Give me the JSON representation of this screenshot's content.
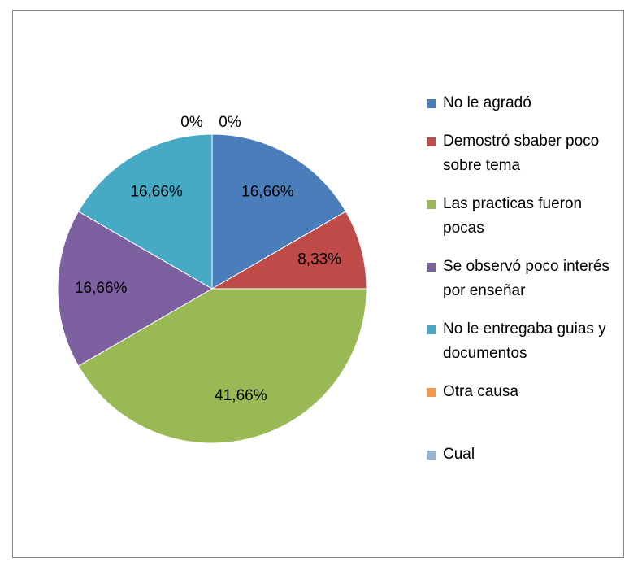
{
  "chart_data": {
    "type": "pie",
    "categories": [
      "No le agradó",
      "Demostró sbaber poco sobre tema",
      "Las practicas fueron pocas",
      "Se observó poco interés por enseñar",
      "No le entregaba guias y documentos",
      "Otra causa",
      "Cual"
    ],
    "values": [
      16.66,
      8.33,
      41.66,
      16.66,
      16.66,
      0,
      0
    ],
    "value_labels": [
      "16,66%",
      "8,33%",
      "41,66%",
      "16,66%",
      "16,66%",
      "0%",
      "0%"
    ],
    "colors": [
      "#4a7ebb",
      "#be4b48",
      "#98b954",
      "#7d60a0",
      "#46aac5",
      "#f79646",
      "#95b3d7"
    ],
    "legend": "right"
  }
}
